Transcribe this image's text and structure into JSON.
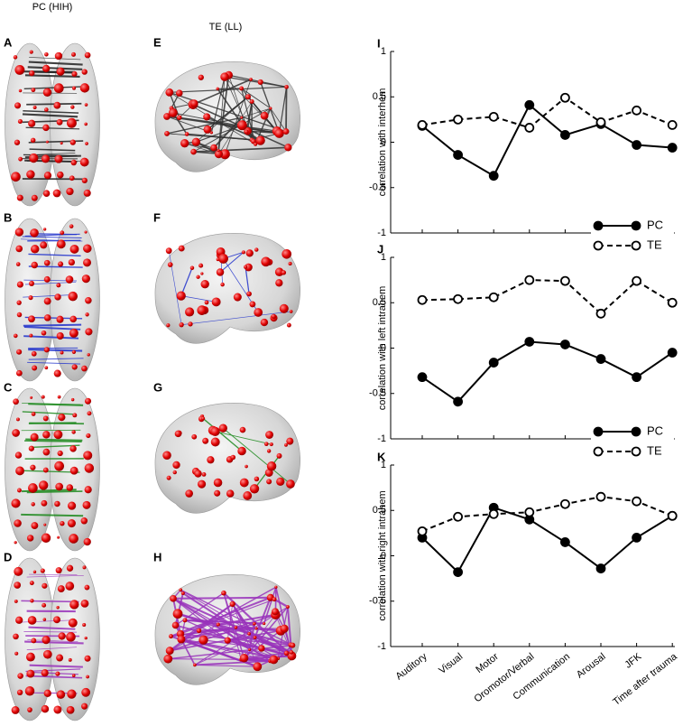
{
  "column_titles": [
    "PC (HIH)",
    "TE (LL)"
  ],
  "panel_letters": [
    "A",
    "B",
    "C",
    "D",
    "E",
    "F",
    "G",
    "H"
  ],
  "chart_data": [
    {
      "type": "line",
      "title": "I",
      "y_label": "correlation with interhem",
      "categories": [
        null,
        null,
        null,
        null,
        null,
        null,
        null,
        null
      ],
      "series": [
        {
          "name": "PC",
          "color": "#000000",
          "line_style": "solid",
          "marker_fill": "#000000",
          "values": [
            0.18,
            -0.14,
            -0.37,
            0.41,
            0.08,
            0.2,
            -0.03,
            -0.06
          ]
        },
        {
          "name": "TE",
          "color": "#000000",
          "line_style": "dashed",
          "marker_fill": "#ffffff",
          "values": [
            0.19,
            0.25,
            0.28,
            0.16,
            0.49,
            0.22,
            0.35,
            0.19
          ]
        }
      ],
      "ylim": [
        -1,
        1
      ],
      "yticks": [
        -1,
        -0.5,
        0,
        0.5,
        1
      ],
      "legend": "lower right"
    },
    {
      "type": "line",
      "title": "J",
      "y_label": "correlation with left intrahem",
      "categories": [
        null,
        null,
        null,
        null,
        null,
        null,
        null,
        null
      ],
      "series": [
        {
          "name": "PC",
          "color": "#000000",
          "line_style": "solid",
          "marker_fill": "#000000",
          "values": [
            -0.32,
            -0.59,
            -0.16,
            0.07,
            0.04,
            -0.12,
            -0.32,
            -0.05
          ]
        },
        {
          "name": "TE",
          "color": "#000000",
          "line_style": "dashed",
          "marker_fill": "#ffffff",
          "values": [
            0.53,
            0.54,
            0.56,
            0.75,
            0.74,
            0.38,
            0.74,
            0.5
          ]
        }
      ],
      "ylim": [
        -1,
        1
      ],
      "yticks": [
        -1,
        -0.5,
        0,
        0.5,
        1
      ],
      "legend": "lower right"
    },
    {
      "type": "line",
      "title": "K",
      "y_label": "correlation with right intrahem",
      "categories": [
        "Auditory",
        "Visual",
        "Motor",
        "Oromotor/Verbal",
        "Communication",
        "Arousal",
        "JFK",
        "Time after trauma"
      ],
      "series": [
        {
          "color": "#000000",
          "line_style": "solid",
          "marker_fill": "#000000",
          "values": [
            0.2,
            -0.18,
            0.53,
            0.4,
            0.15,
            -0.14,
            0.2,
            0.44
          ]
        },
        {
          "color": "#000000",
          "line_style": "dashed",
          "marker_fill": "#ffffff",
          "values": [
            0.27,
            0.43,
            0.46,
            0.48,
            0.57,
            0.65,
            0.6,
            0.44
          ]
        }
      ],
      "ylim": [
        -1,
        1
      ],
      "yticks": [
        -1,
        -0.5,
        0,
        0.5,
        1
      ]
    }
  ]
}
